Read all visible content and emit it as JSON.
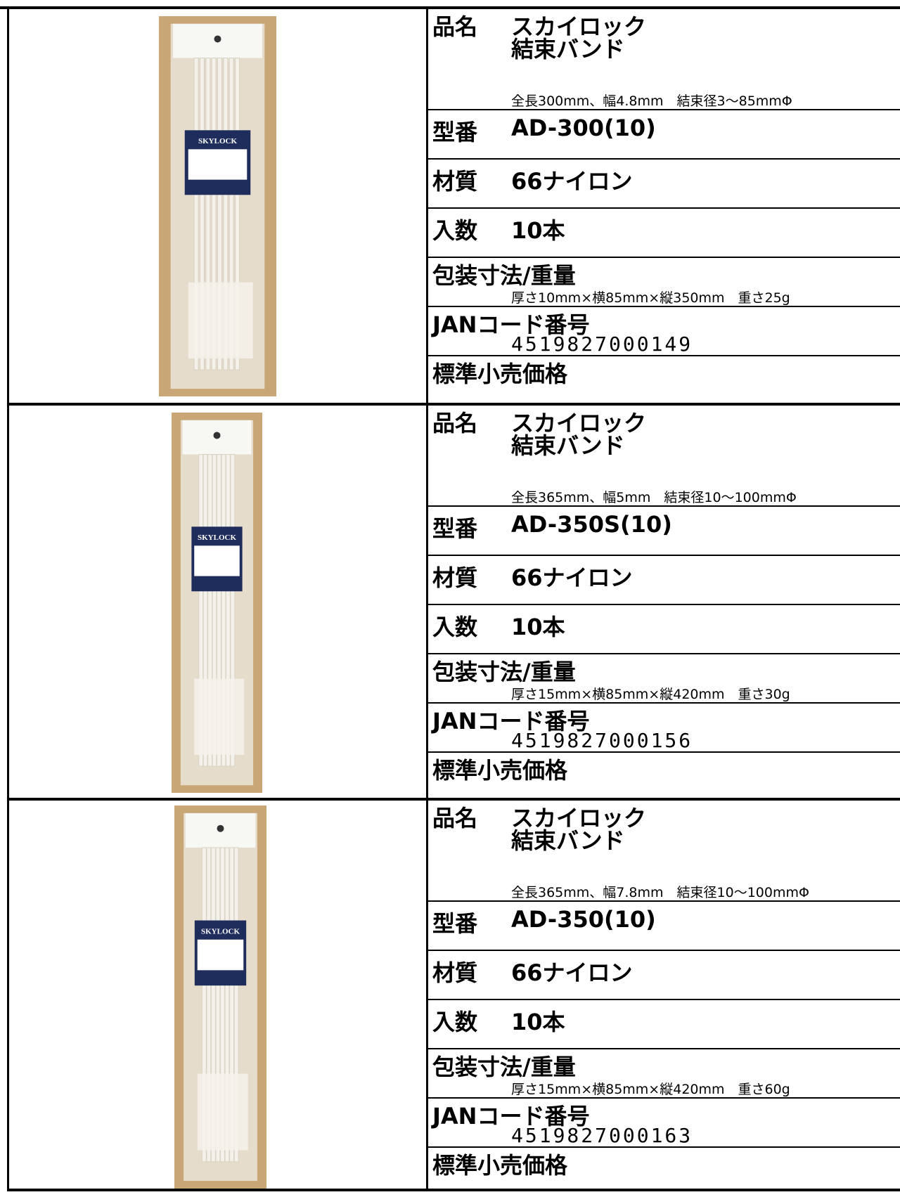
{
  "labels": {
    "name": "品名",
    "model": "型番",
    "material": "材質",
    "count": "入数",
    "package": "包装寸法/重量",
    "jan": "JANコード番号",
    "price": "標準小売価格"
  },
  "products": [
    {
      "brand": "SKYLOCK",
      "name_line1": "スカイロック",
      "name_line2": "結束バンド",
      "spec": "全長300mm、幅4.8mm　結束径3～85mmΦ",
      "model": "AD-300(10)",
      "material": "66ナイロン",
      "count": "10本",
      "package": "厚さ10mm×横85mm×縦350mm　重さ25g",
      "jan": "4519827000149"
    },
    {
      "brand": "SKYLOCK",
      "name_line1": "スカイロック",
      "name_line2": "結束バンド",
      "spec": "全長365mm、幅5mm　結束径10～100mmΦ",
      "model": "AD-350S(10)",
      "material": "66ナイロン",
      "count": "10本",
      "package": "厚さ15mm×横85mm×縦420mm　重さ30g",
      "jan": "4519827000156"
    },
    {
      "brand": "SKYLOCK",
      "name_line1": "スカイロック",
      "name_line2": "結束バンド",
      "spec": "全長365mm、幅7.8mm　結束径10～100mmΦ",
      "model": "AD-350(10)",
      "material": "66ナイロン",
      "count": "10本",
      "package": "厚さ15mm×横85mm×縦420mm　重さ60g",
      "jan": "4519827000163"
    }
  ]
}
